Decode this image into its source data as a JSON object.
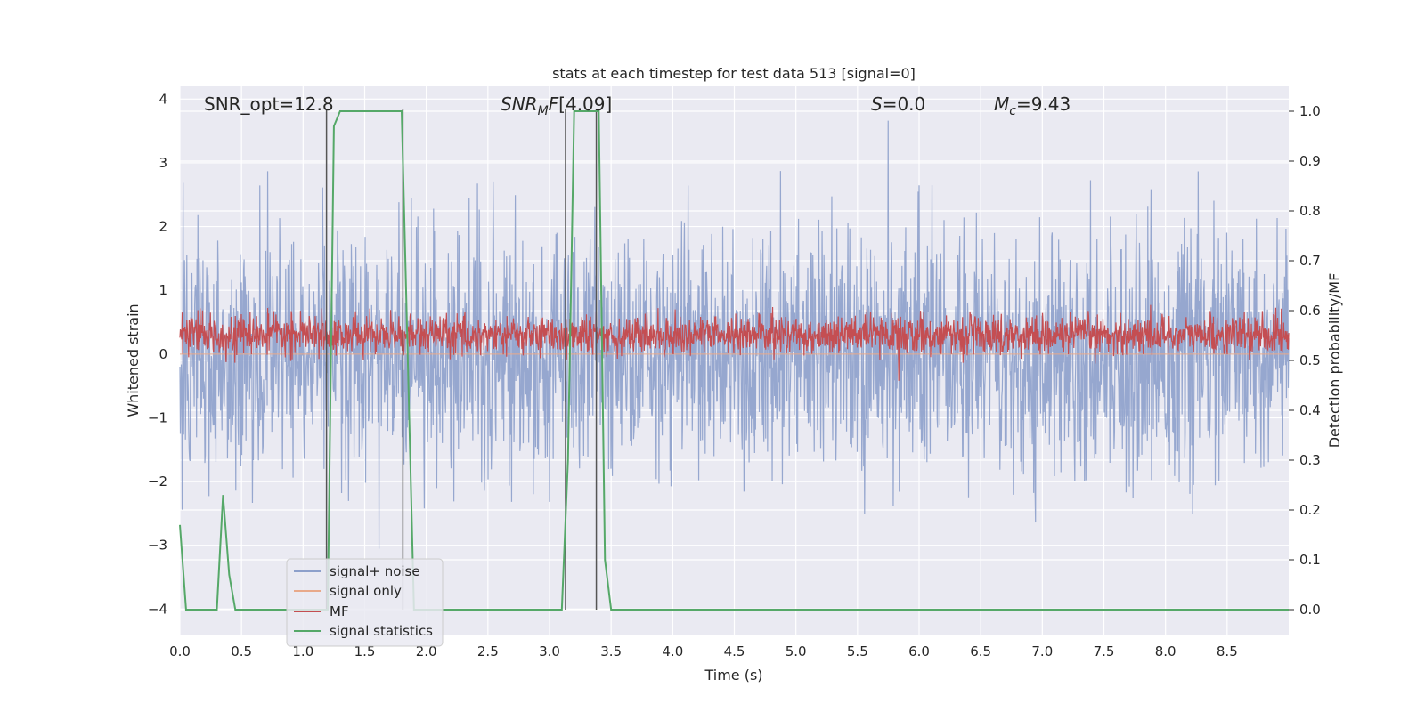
{
  "chart_data": {
    "type": "line",
    "title": "stats at each timestep for test data 513 [signal=0]",
    "xlabel": "Time (s)",
    "ylabel": "Whitened strain",
    "y2label": "Detection probability/MF",
    "xlim": [
      0,
      9.0
    ],
    "ylim": [
      -4.4,
      4.2
    ],
    "y2lim": [
      -0.05,
      1.05
    ],
    "x_ticks": [
      "0.0",
      "0.5",
      "1.0",
      "1.5",
      "2.0",
      "2.5",
      "3.0",
      "3.5",
      "4.0",
      "4.5",
      "5.0",
      "5.5",
      "6.0",
      "6.5",
      "7.0",
      "7.5",
      "8.0",
      "8.5"
    ],
    "y_ticks": [
      "4",
      "3",
      "2",
      "1",
      "0",
      "−1",
      "−2",
      "−3",
      "−4"
    ],
    "y2_ticks": [
      "1.0",
      "0.9",
      "0.8",
      "0.7",
      "0.6",
      "0.5",
      "0.4",
      "0.3",
      "0.2",
      "0.1",
      "0.0"
    ],
    "grid": true,
    "legend_position": "lower-left",
    "annotations": {
      "snr_opt": "SNR_opt=12.8",
      "snr_mf": "[4.09]",
      "s_value": "=0.0",
      "mc_value": "=9.43"
    },
    "series": [
      {
        "name": "signal+ noise",
        "color": "#8da0cb",
        "axis": "left",
        "kind": "noise",
        "envelope_std": 0.95
      },
      {
        "name": "signal only",
        "color": "#e8a98a",
        "axis": "left",
        "kind": "flat",
        "values": [
          0
        ]
      },
      {
        "name": "MF",
        "color": "#c44e52",
        "axis": "left",
        "kind": "noise",
        "envelope_mean": 0.3,
        "envelope_std": 0.15
      },
      {
        "name": "signal statistics",
        "color": "#55a868",
        "axis": "right",
        "x": [
          0.0,
          0.05,
          0.1,
          0.2,
          0.3,
          0.35,
          0.4,
          0.45,
          0.5,
          1.15,
          1.2,
          1.25,
          1.3,
          1.4,
          1.8,
          1.85,
          1.9,
          1.95,
          2.0,
          3.1,
          3.15,
          3.2,
          3.3,
          3.4,
          3.45,
          3.5,
          9.0
        ],
        "values": [
          0.17,
          0.0,
          0.0,
          0.0,
          0.0,
          0.23,
          0.07,
          0.0,
          0.0,
          0.0,
          0.0,
          0.97,
          1.0,
          1.0,
          1.0,
          0.5,
          0.0,
          0.0,
          0.0,
          0.0,
          0.3,
          1.0,
          1.0,
          1.0,
          0.1,
          0.0,
          0.0
        ]
      }
    ],
    "markers_x": [
      1.19,
      1.81,
      3.13,
      3.38
    ]
  }
}
